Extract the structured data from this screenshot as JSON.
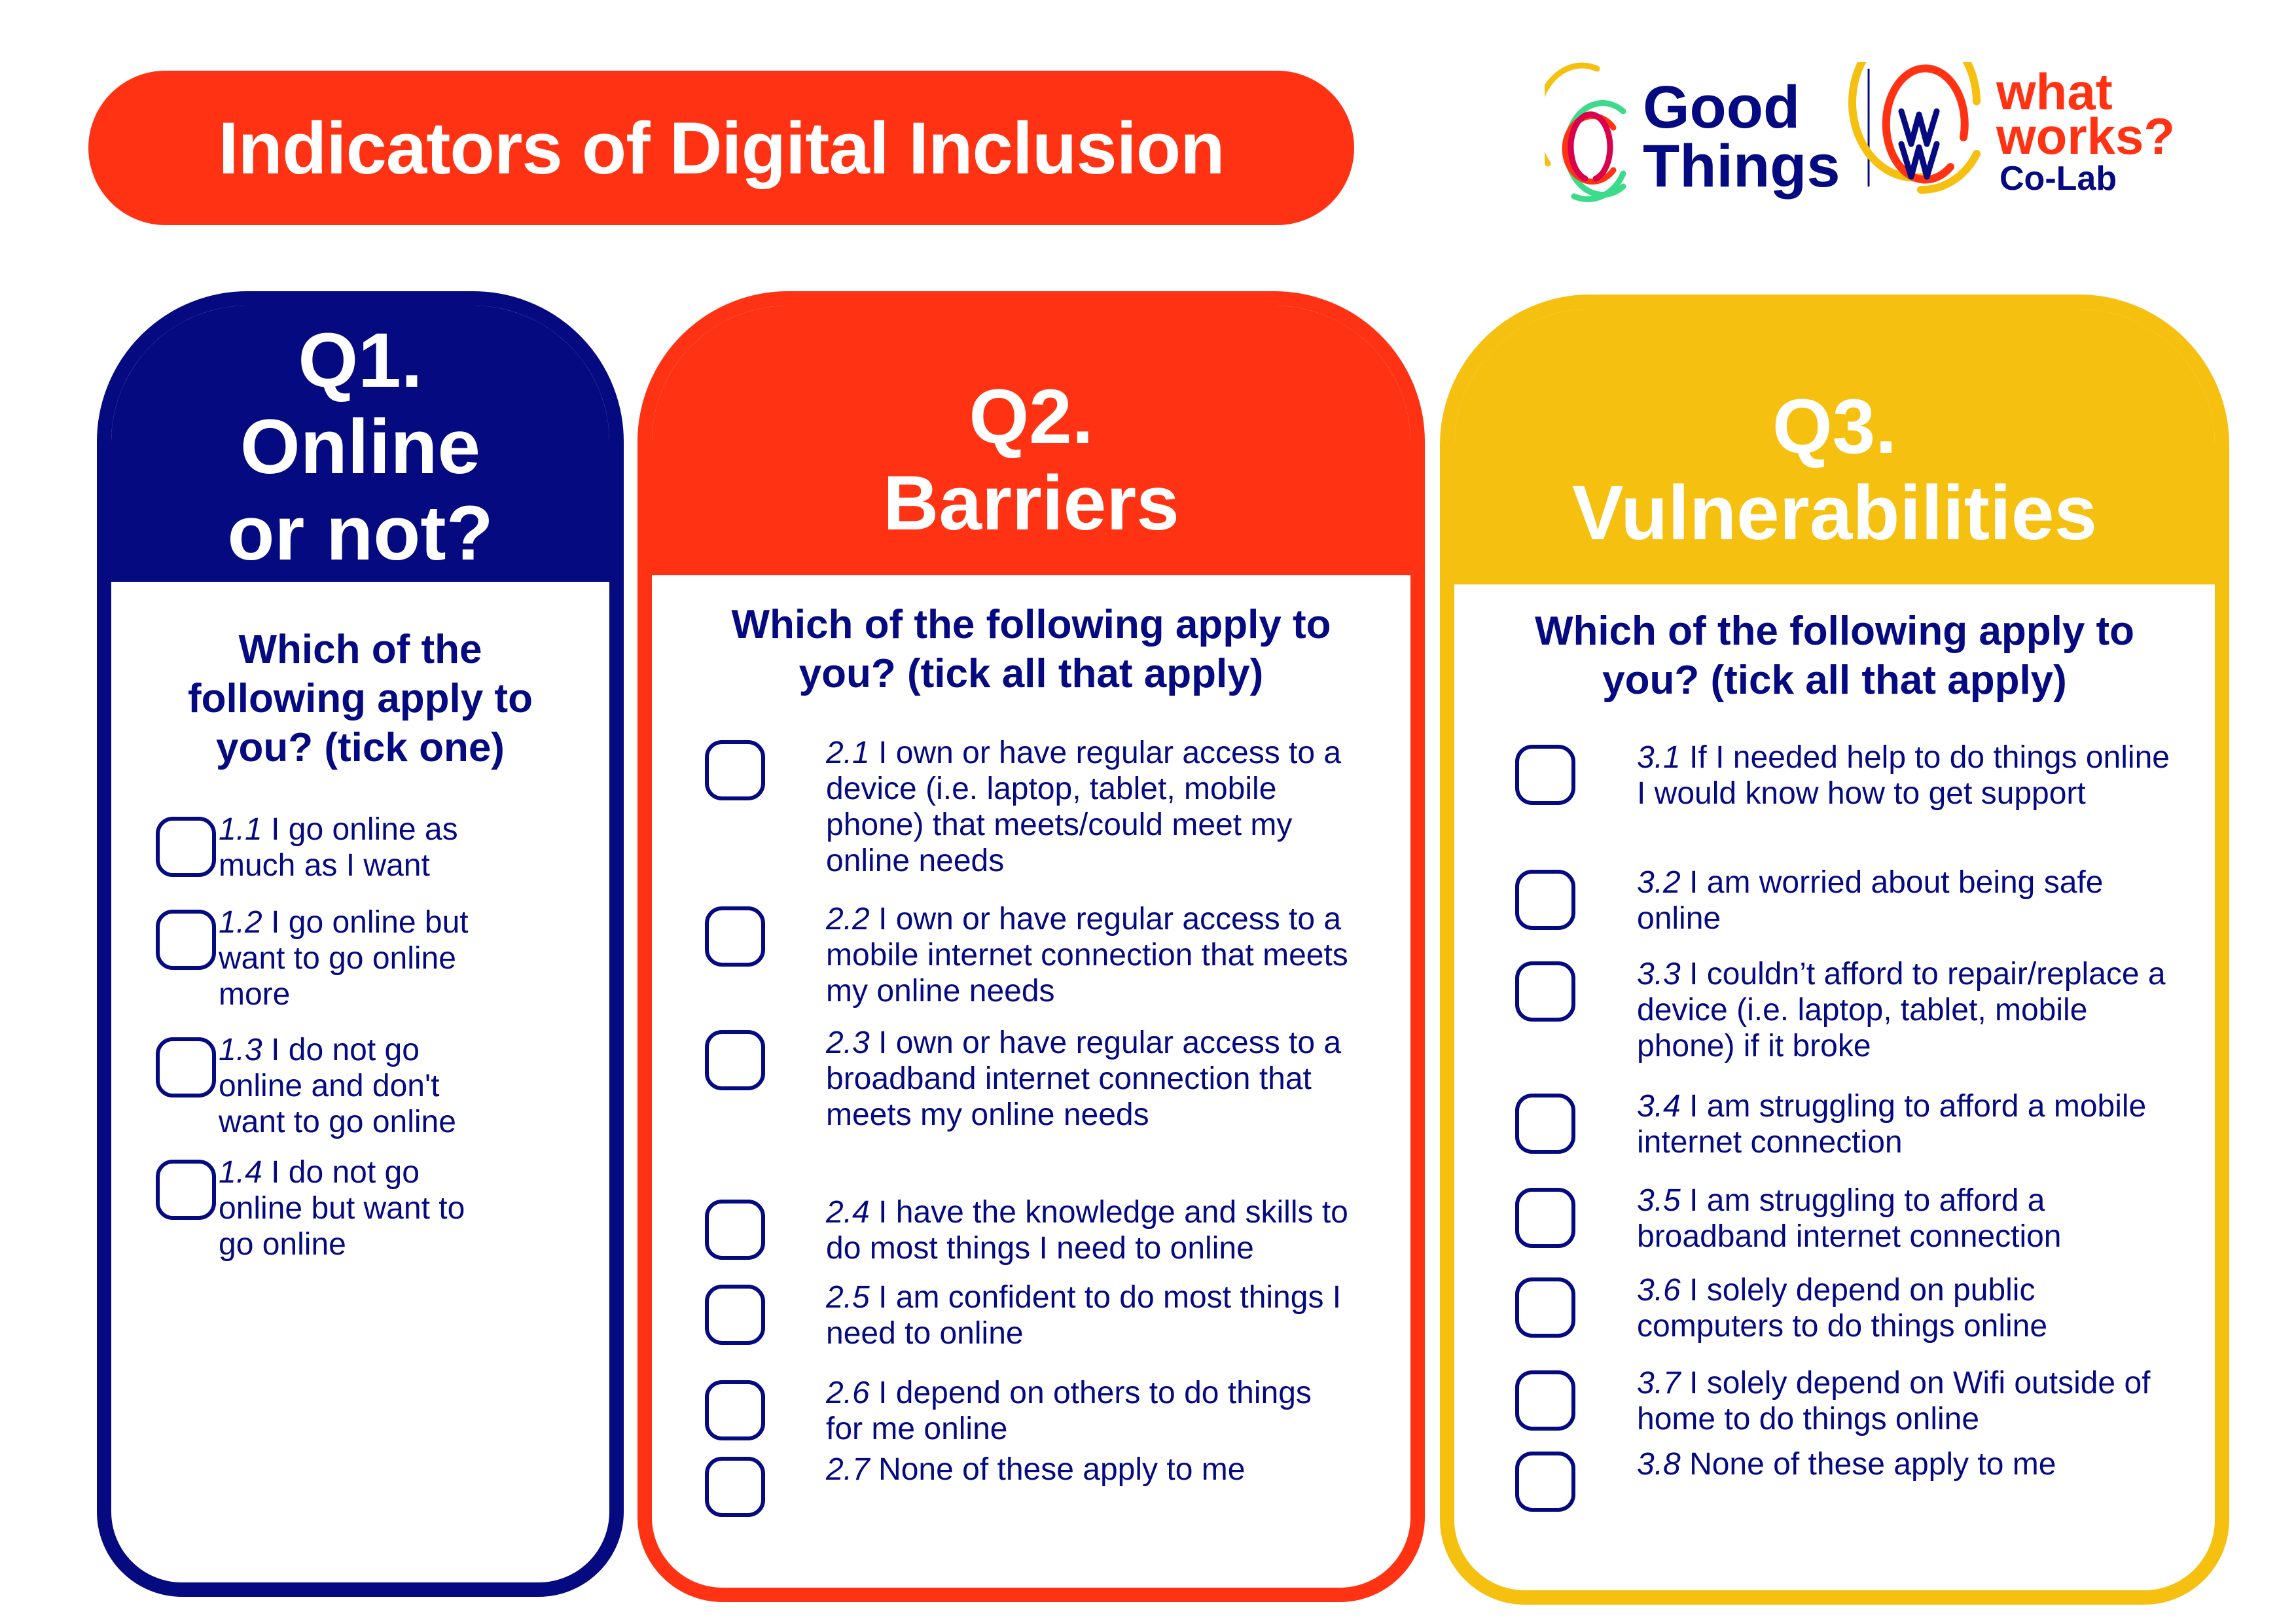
{
  "title": "Indicators of Digital Inclusion",
  "logos": {
    "good_things": {
      "line1": "Good",
      "line2": "Things"
    },
    "what_works": {
      "line1": "what",
      "line2": "works?",
      "line3": "Co-Lab"
    }
  },
  "colors": {
    "navy": "#050A80",
    "red": "#FF3314",
    "yellow": "#F5C010",
    "green": "#3CDB8C",
    "crimson": "#D9004C"
  },
  "columns": [
    {
      "title_lines": [
        "Q1.",
        "Online",
        "or not?"
      ],
      "heading": "Which of the following apply to you? (tick one)",
      "items": [
        {
          "num": "1.1",
          "text": " I go online as much as I want"
        },
        {
          "num": "1.2",
          "text": " I go online but want to go online more"
        },
        {
          "num": "1.3",
          "text": " I do not go online and don't want to go online"
        },
        {
          "num": "1.4",
          "text": " I do not go online but want to go online"
        }
      ]
    },
    {
      "title_lines": [
        "Q2.",
        "Barriers"
      ],
      "heading": "Which of the following apply to you? (tick all that apply)",
      "items": [
        {
          "num": "2.1",
          "text": " I own or have regular access to a device (i.e. laptop, tablet, mobile phone) that meets/could meet my online needs"
        },
        {
          "num": "2.2",
          "text": " I own or have regular access to a mobile internet connection that meets my online needs"
        },
        {
          "num": "2.3",
          "text": " I own or have regular access to a broadband internet connection that meets my online needs"
        },
        {
          "num": "2.4",
          "text": " I have the knowledge and skills to do most things I need to online"
        },
        {
          "num": "2.5",
          "text": " I am confident to do most things I need to online"
        },
        {
          "num": "2.6",
          "text": " I depend on others to do things for me online"
        },
        {
          "num": "2.7",
          "text": " None of these apply to me"
        }
      ]
    },
    {
      "title_lines": [
        "Q3.",
        "Vulnerabilities"
      ],
      "heading": "Which of the following apply to you? (tick all that apply)",
      "items": [
        {
          "num": "3.1",
          "text": " If I needed help to do things online I would know how to get support"
        },
        {
          "num": "3.2",
          "text": " I am worried about being safe online"
        },
        {
          "num": "3.3",
          "text": " I couldn’t afford to repair/replace a device (i.e. laptop, tablet, mobile phone) if it broke"
        },
        {
          "num": "3.4",
          "text": " I am struggling to afford a mobile internet connection"
        },
        {
          "num": "3.5",
          "text": " I am struggling to afford a broadband internet connection"
        },
        {
          "num": "3.6",
          "text": " I solely depend on public computers to do things online"
        },
        {
          "num": "3.7",
          "text": " I solely depend on Wifi outside of home to do things online"
        },
        {
          "num": "3.8",
          "text": " None of these apply to me"
        }
      ]
    }
  ]
}
